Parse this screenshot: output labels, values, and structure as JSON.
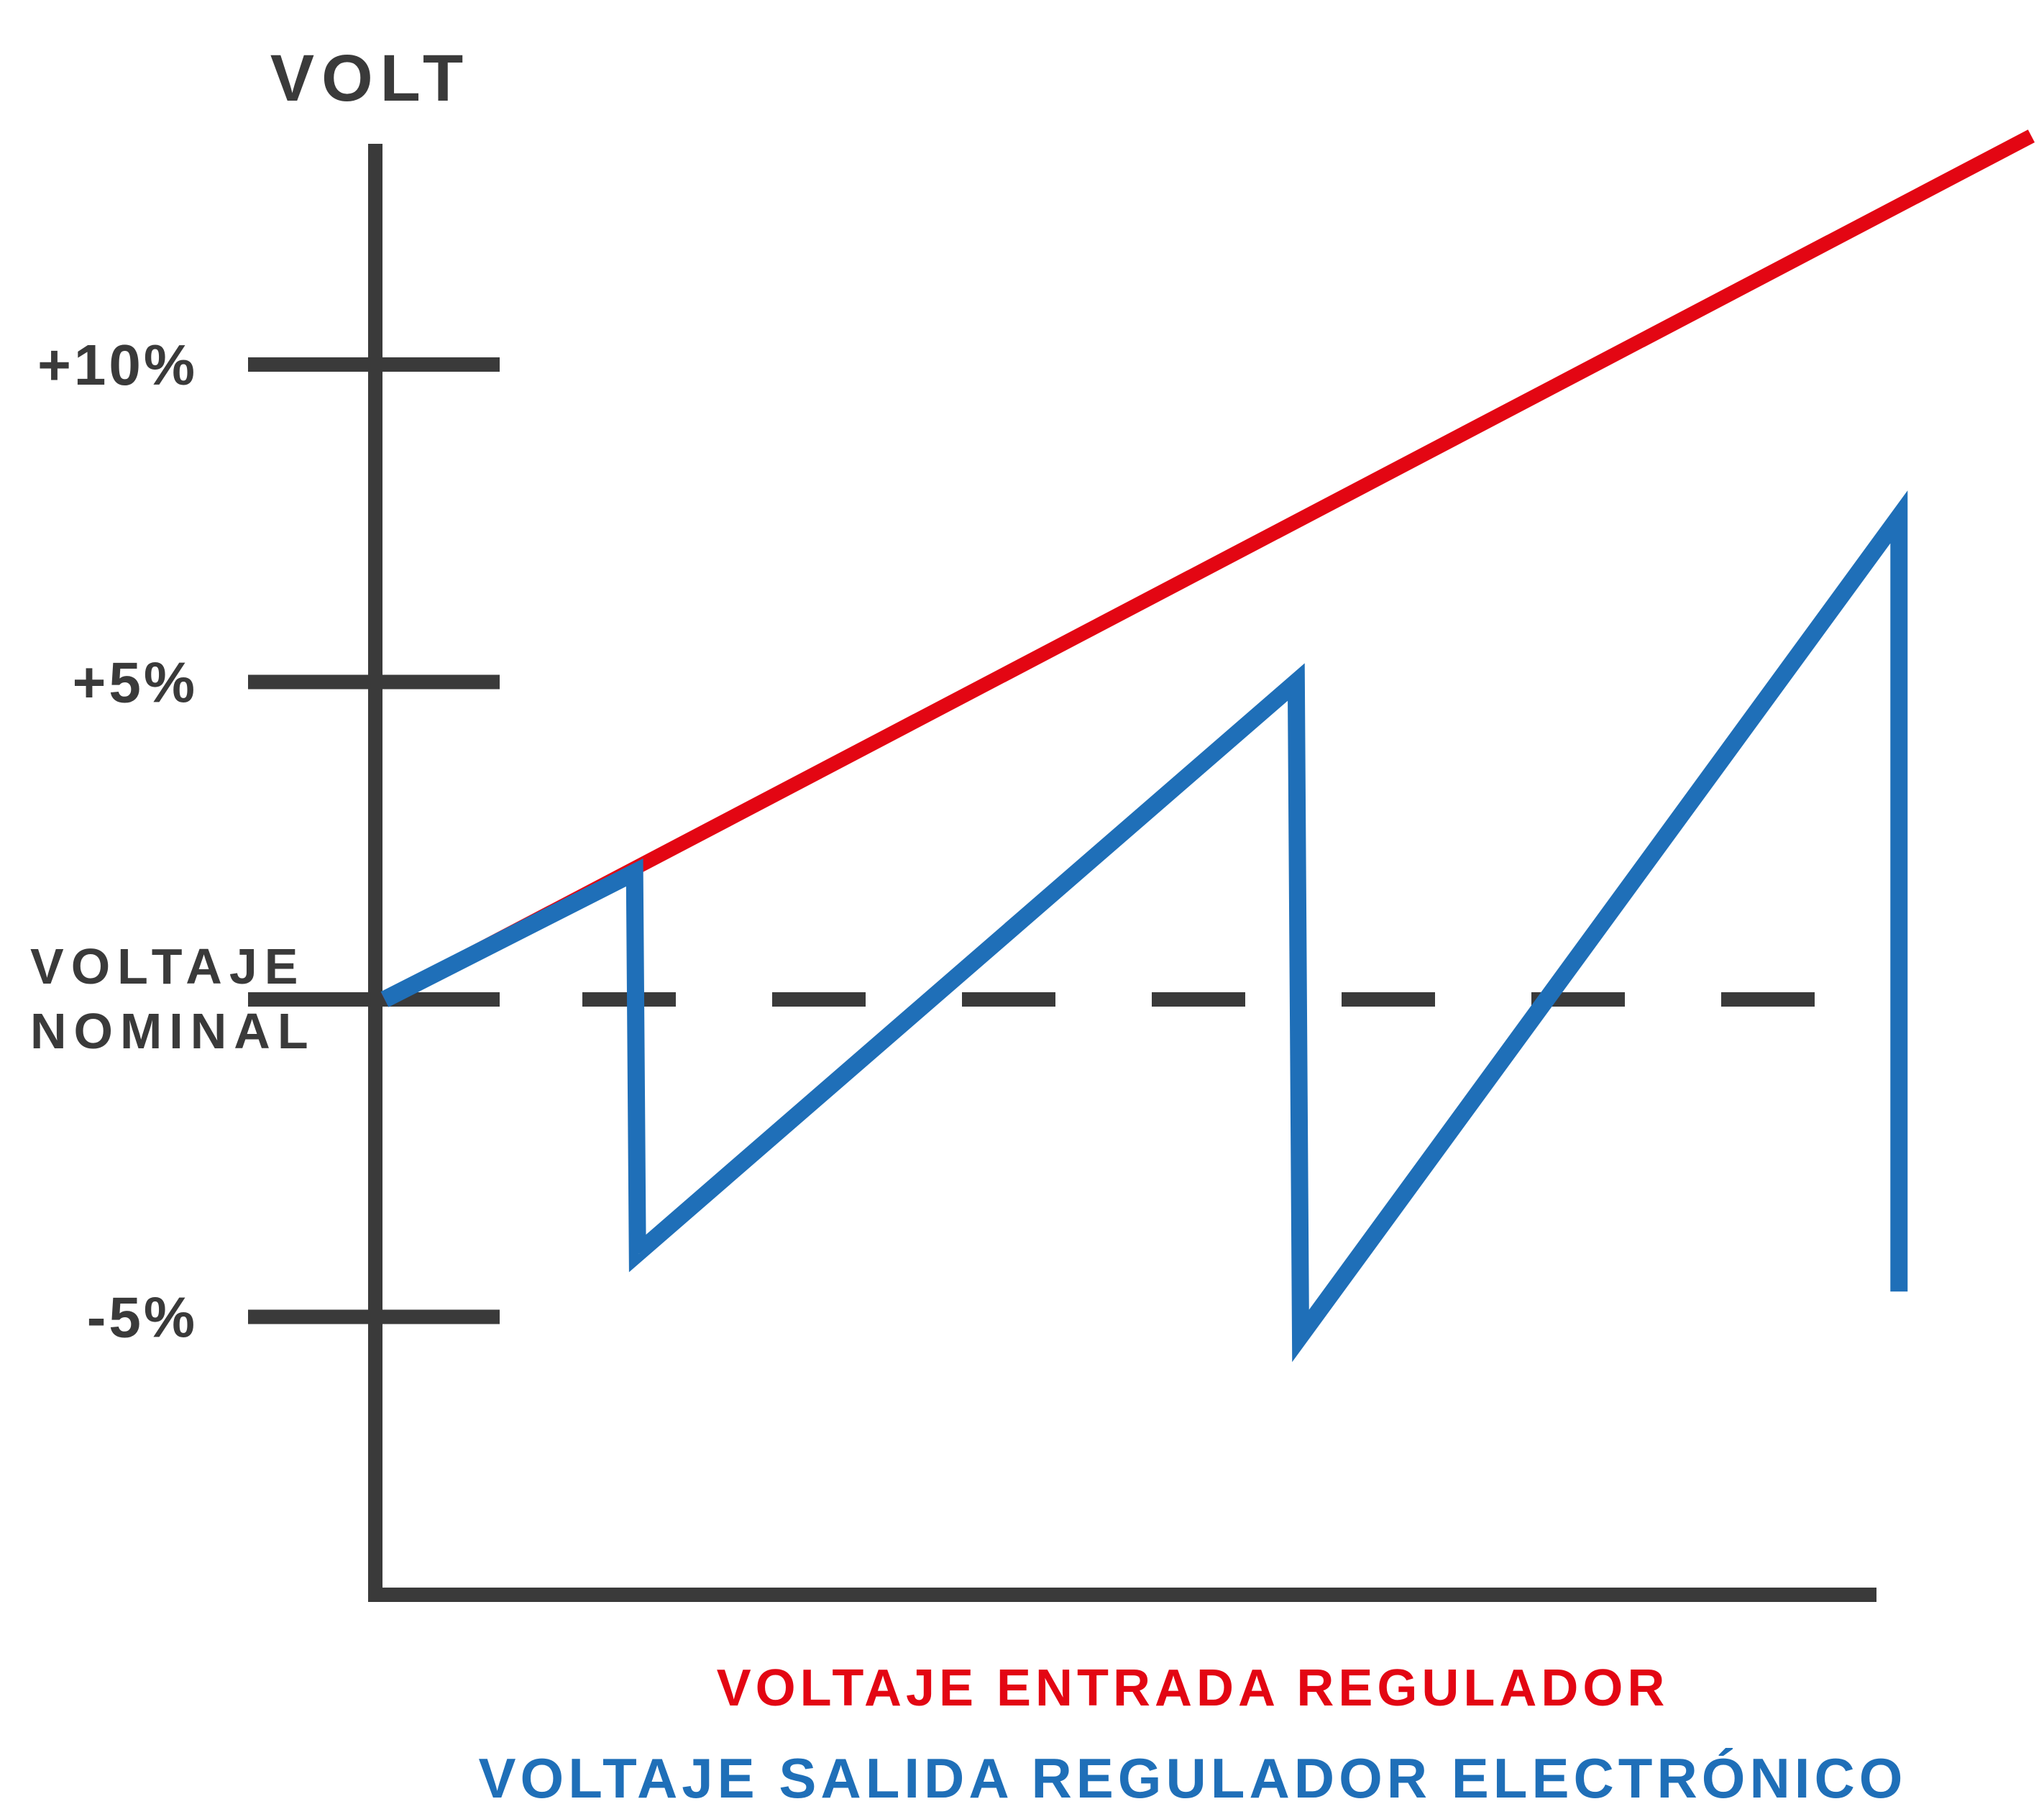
{
  "chart_data": {
    "type": "line",
    "ylabel": "VOLT",
    "ytick_labels": [
      "+10%",
      "+5%",
      "-5%"
    ],
    "ytick_values": [
      10,
      5,
      -5
    ],
    "nominal_label": [
      "VOLTAJE",
      "NOMINAL"
    ],
    "nominal_value": 0,
    "ylim": [
      -15,
      13.5
    ],
    "xlim": [
      0,
      100
    ],
    "legend_placement": "bottom",
    "series": [
      {
        "name": "VOLTAJE ENTRADA REGULADOR",
        "color": "#e30613",
        "x": [
          0,
          112
        ],
        "y": [
          0,
          13.6
        ]
      },
      {
        "name": "VOLTAJE SALIDA REGULADOR ELECTRÓNICO",
        "color": "#1f6fb8",
        "x": [
          0,
          17,
          17.2,
          62,
          62.3,
          103,
          103,
          103
        ],
        "y": [
          0,
          2,
          -4,
          5,
          -5.3,
          7.6,
          7.6,
          -4.6
        ]
      }
    ],
    "reference_line": {
      "style": "dashed",
      "y": 0
    }
  }
}
